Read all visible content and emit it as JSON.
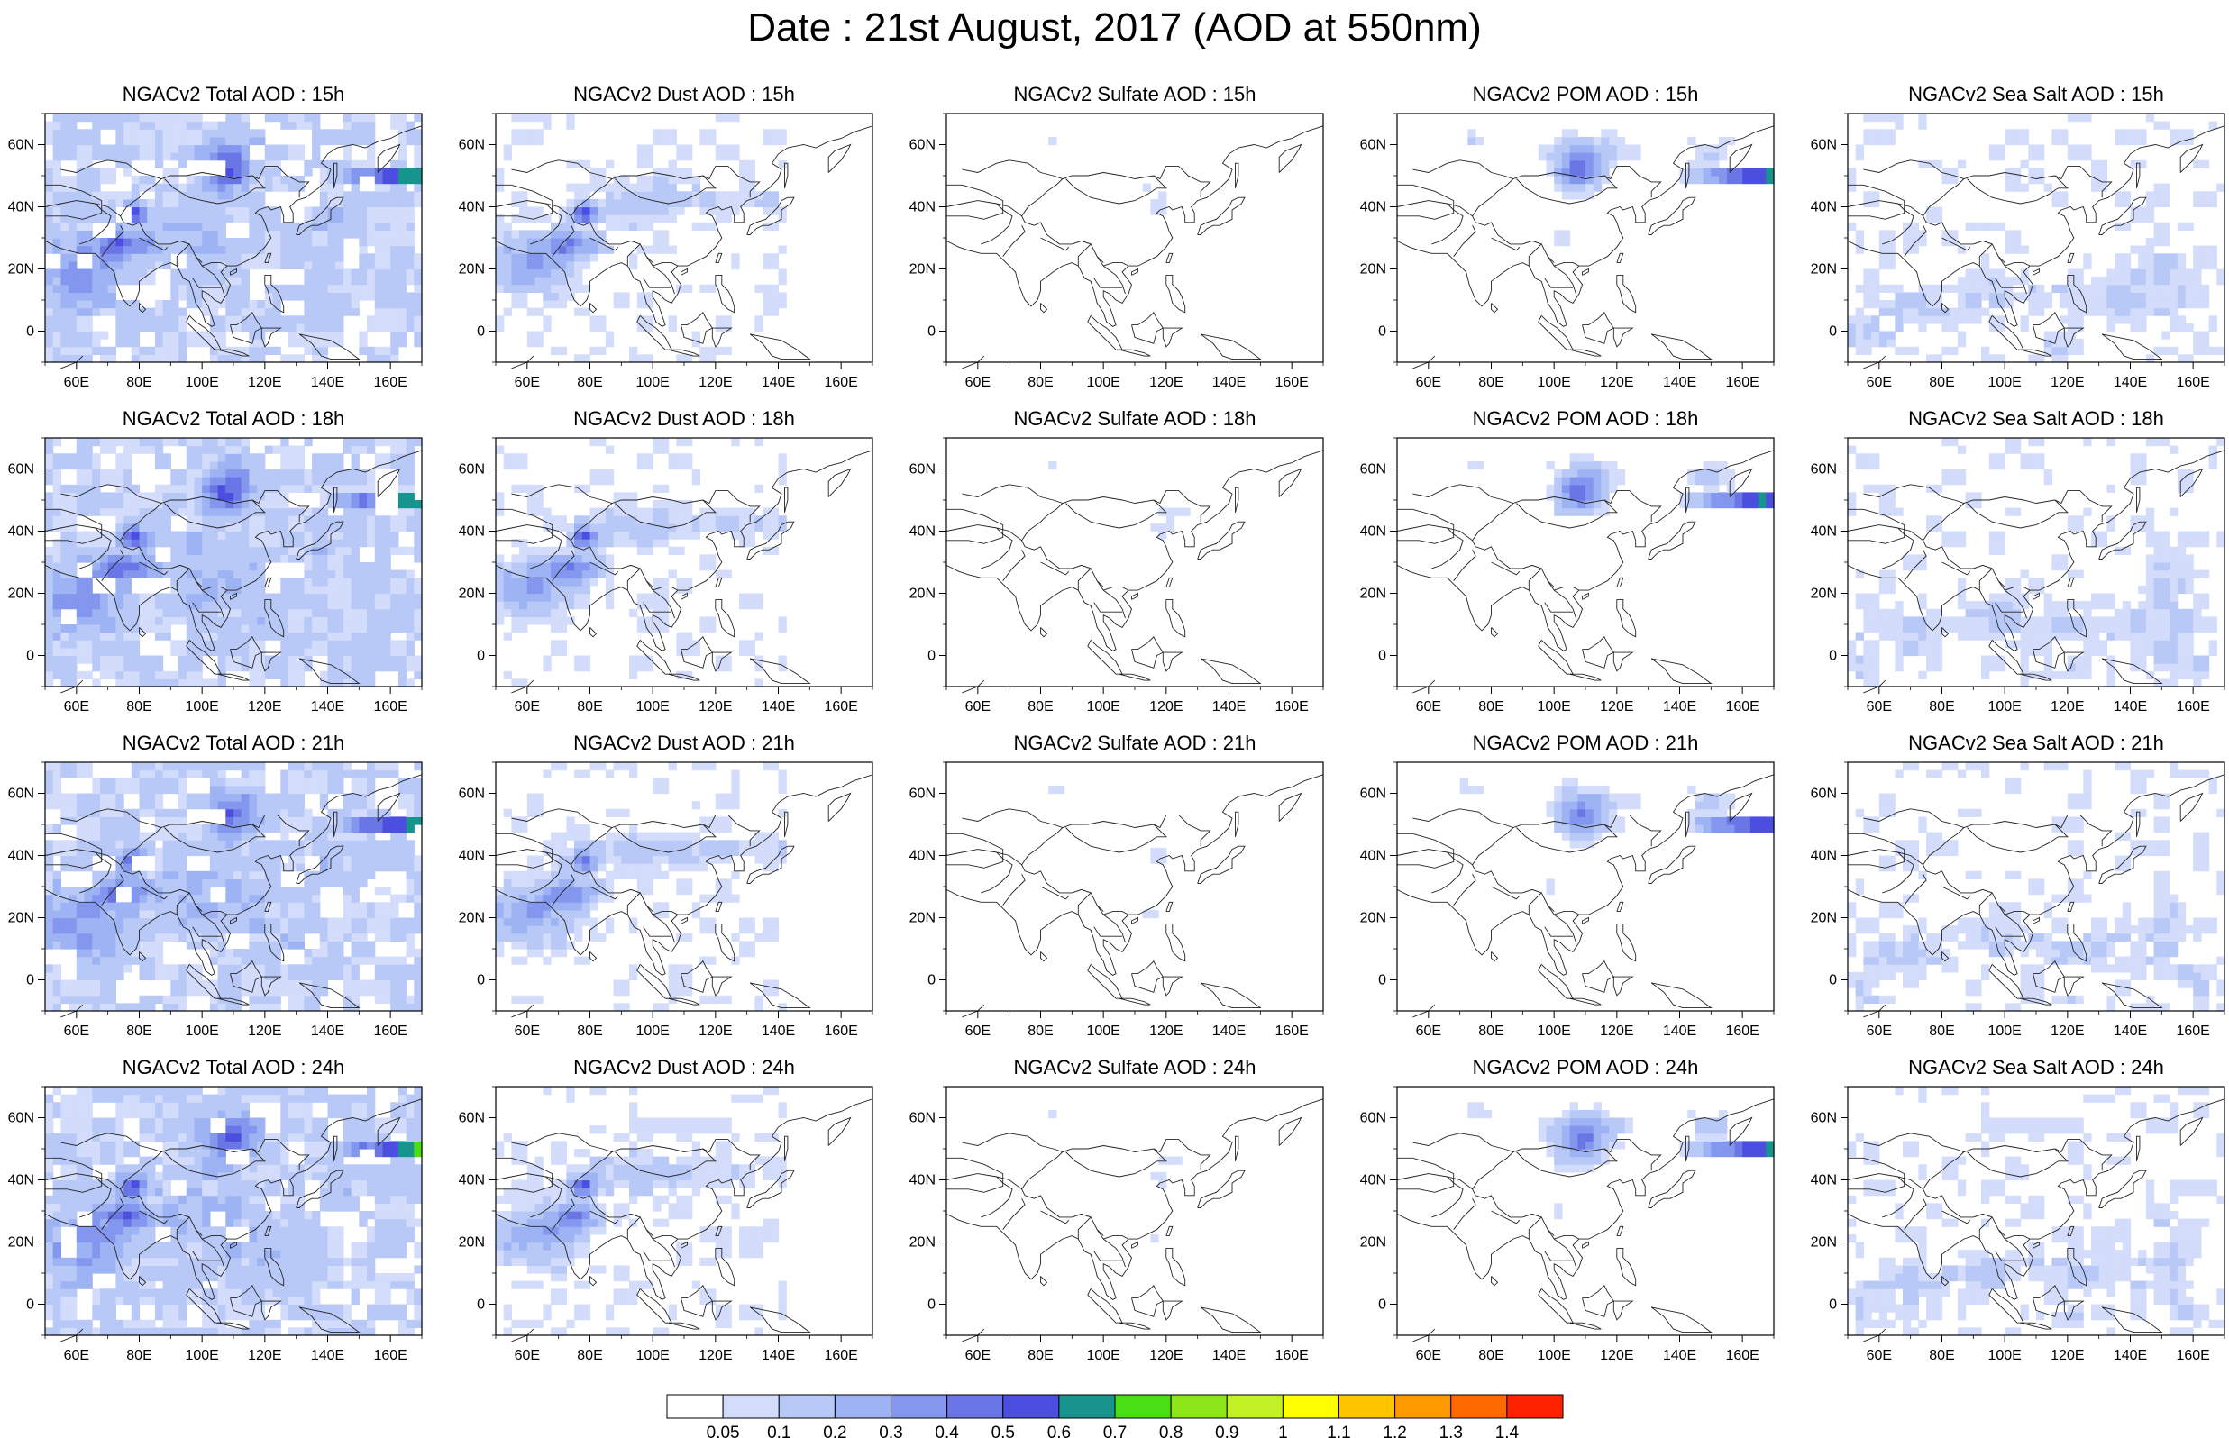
{
  "title": "Date : 21st August, 2017 (AOD at 550nm)",
  "panels": [
    {
      "title": "NGACv2 Total AOD : 15h",
      "type": "total"
    },
    {
      "title": "NGACv2 Dust AOD : 15h",
      "type": "dust"
    },
    {
      "title": "NGACv2 Sulfate AOD : 15h",
      "type": "sulfate"
    },
    {
      "title": "NGACv2 POM AOD : 15h",
      "type": "pom"
    },
    {
      "title": "NGACv2 Sea Salt AOD : 15h",
      "type": "seasalt"
    },
    {
      "title": "NGACv2 Total AOD : 18h",
      "type": "total"
    },
    {
      "title": "NGACv2 Dust AOD : 18h",
      "type": "dust"
    },
    {
      "title": "NGACv2 Sulfate AOD : 18h",
      "type": "sulfate"
    },
    {
      "title": "NGACv2 POM AOD : 18h",
      "type": "pom"
    },
    {
      "title": "NGACv2 Sea Salt AOD : 18h",
      "type": "seasalt"
    },
    {
      "title": "NGACv2 Total AOD : 21h",
      "type": "total"
    },
    {
      "title": "NGACv2 Dust AOD : 21h",
      "type": "dust"
    },
    {
      "title": "NGACv2 Sulfate AOD : 21h",
      "type": "sulfate"
    },
    {
      "title": "NGACv2 POM AOD : 21h",
      "type": "pom"
    },
    {
      "title": "NGACv2 Sea Salt AOD : 21h",
      "type": "seasalt"
    },
    {
      "title": "NGACv2 Total AOD : 24h",
      "type": "total"
    },
    {
      "title": "NGACv2 Dust AOD : 24h",
      "type": "dust"
    },
    {
      "title": "NGACv2 Sulfate AOD : 24h",
      "type": "sulfate"
    },
    {
      "title": "NGACv2 POM AOD : 24h",
      "type": "pom"
    },
    {
      "title": "NGACv2 Sea Salt  AOD : 24h",
      "type": "seasalt"
    }
  ],
  "axes": {
    "lon_range": [
      50,
      170
    ],
    "lat_range": [
      -10,
      70
    ],
    "lon_ticks": [
      "60E",
      "80E",
      "100E",
      "120E",
      "140E",
      "160E"
    ],
    "lat_ticks": [
      "60N",
      "40N",
      "20N",
      "0"
    ]
  },
  "colorbar": {
    "labels": [
      "0.05",
      "0.1",
      "0.2",
      "0.3",
      "0.4",
      "0.5",
      "0.6",
      "0.7",
      "0.8",
      "0.9",
      "1",
      "1.1",
      "1.2",
      "1.3",
      "1.4"
    ],
    "colors": [
      "#ffffff",
      "#d3dcfb",
      "#b8c8f7",
      "#9eb3f4",
      "#8397ee",
      "#6b76e6",
      "#4c4ee0",
      "#17948d",
      "#4ade14",
      "#8ce61a",
      "#c2f226",
      "#ffff00",
      "#ffc400",
      "#ff9900",
      "#ff6a00",
      "#ff2200"
    ]
  }
}
